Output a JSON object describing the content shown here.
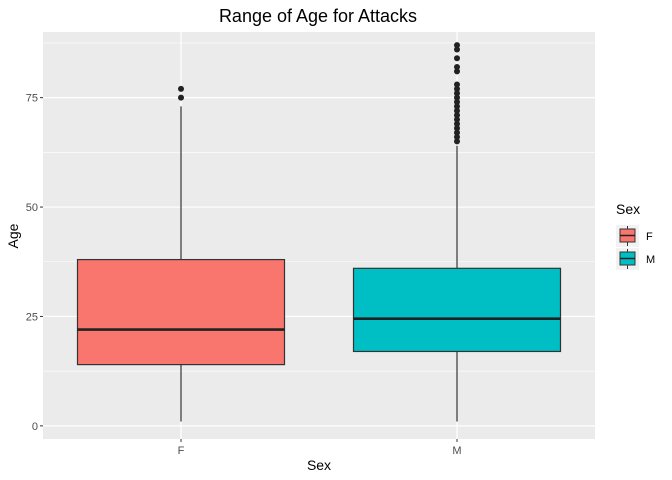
{
  "chart_data": {
    "type": "boxplot",
    "title": "Range of Age for Attacks",
    "xlabel": "Sex",
    "ylabel": "Age",
    "ylim": [
      -3,
      90
    ],
    "yticks": [
      0,
      25,
      50,
      75
    ],
    "grid": true,
    "legend": {
      "title": "Sex",
      "placement": "right",
      "entries": [
        {
          "label": "F",
          "color": "#F8766D"
        },
        {
          "label": "M",
          "color": "#00BFC4"
        }
      ]
    },
    "categories": [
      "F",
      "M"
    ],
    "series": [
      {
        "name": "F",
        "color": "#F8766D",
        "whisker_low": 1,
        "q1": 14,
        "median": 22,
        "q3": 38,
        "whisker_high": 73,
        "outliers": [
          75,
          77
        ]
      },
      {
        "name": "M",
        "color": "#00BFC4",
        "whisker_low": 1,
        "q1": 17,
        "median": 24.5,
        "q3": 36,
        "whisker_high": 64,
        "outliers": [
          65,
          66,
          67,
          68,
          69,
          70,
          71,
          72,
          73,
          74,
          75,
          76,
          77,
          78,
          81,
          82,
          84,
          86,
          87
        ]
      }
    ]
  }
}
